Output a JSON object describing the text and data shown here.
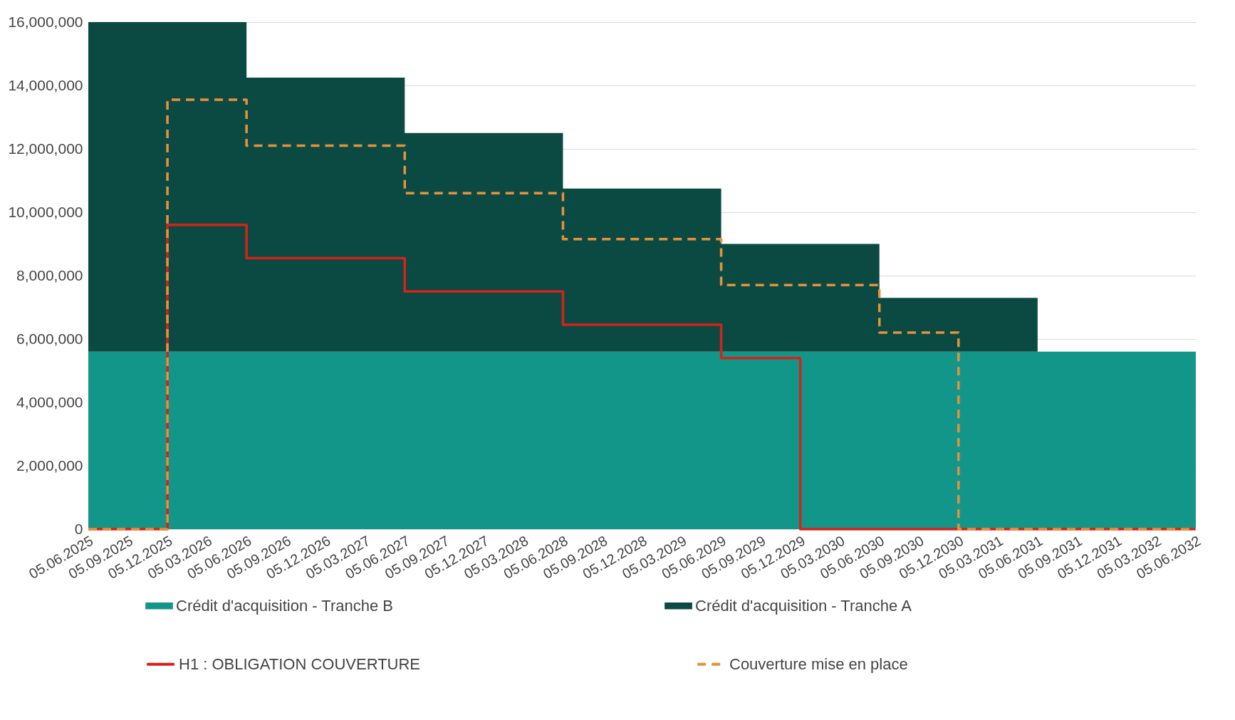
{
  "chart_data": {
    "type": "step",
    "stacked": true,
    "categories": [
      "05.06.2025",
      "05.09.2025",
      "05.12.2025",
      "05.03.2026",
      "05.06.2026",
      "05.09.2026",
      "05.12.2026",
      "05.03.2027",
      "05.06.2027",
      "05.09.2027",
      "05.12.2027",
      "05.03.2028",
      "05.06.2028",
      "05.09.2028",
      "05.12.2028",
      "05.03.2029",
      "05.06.2029",
      "05.09.2029",
      "05.12.2029",
      "05.03.2030",
      "05.06.2030",
      "05.09.2030",
      "05.12.2030",
      "05.03.2031",
      "05.06.2031",
      "05.09.2031",
      "05.12.2031",
      "05.03.2032",
      "05.06.2032"
    ],
    "series": [
      {
        "name": "Crédit d'acquisition - Tranche B",
        "type": "area",
        "color": "#12968a",
        "values": [
          5600000,
          5600000,
          5600000,
          5600000,
          5600000,
          5600000,
          5600000,
          5600000,
          5600000,
          5600000,
          5600000,
          5600000,
          5600000,
          5600000,
          5600000,
          5600000,
          5600000,
          5600000,
          5600000,
          5600000,
          5600000,
          5600000,
          5600000,
          5600000,
          5600000,
          5600000,
          5600000,
          5600000,
          5600000
        ]
      },
      {
        "name": "Crédit d'acquisition - Tranche A",
        "type": "area",
        "color": "#0b4a42",
        "values": [
          10400000,
          10400000,
          10400000,
          10400000,
          8650000,
          8650000,
          8650000,
          8650000,
          6900000,
          6900000,
          6900000,
          6900000,
          5150000,
          5150000,
          5150000,
          5150000,
          3400000,
          3400000,
          3400000,
          3400000,
          1700000,
          1700000,
          1700000,
          1700000,
          0,
          0,
          0,
          0,
          0
        ]
      },
      {
        "name": "H1 : OBLIGATION COUVERTURE",
        "type": "step",
        "color": "#d6221a",
        "line_style": "solid",
        "values": [
          0,
          0,
          9600000,
          9600000,
          8550000,
          8550000,
          8550000,
          8550000,
          7500000,
          7500000,
          7500000,
          7500000,
          6450000,
          6450000,
          6450000,
          6450000,
          5400000,
          5400000,
          0,
          0,
          0,
          0,
          0,
          0,
          0,
          0,
          0,
          0,
          0
        ]
      },
      {
        "name": "Couverture mise en place",
        "type": "step",
        "color": "#e8913a",
        "line_style": "dashed",
        "values": [
          0,
          0,
          13550000,
          13550000,
          12100000,
          12100000,
          12100000,
          12100000,
          10600000,
          10600000,
          10600000,
          10600000,
          9150000,
          9150000,
          9150000,
          9150000,
          7700000,
          7700000,
          7700000,
          7700000,
          6200000,
          6200000,
          0,
          0,
          0,
          0,
          0,
          0,
          0
        ]
      }
    ],
    "ylim": [
      0,
      16000000
    ],
    "yticks": [
      0,
      {
        "value": 2000000,
        "label": "2,000,000"
      },
      {
        "value": 4000000,
        "label": "4,000,000"
      },
      {
        "value": 6000000,
        "label": "6,000,000"
      },
      {
        "value": 8000000,
        "label": "8,000,000"
      },
      {
        "value": 10000000,
        "label": "10,000,000"
      },
      {
        "value": 12000000,
        "label": "12,000,000"
      },
      {
        "value": 14000000,
        "label": "14,000,000"
      },
      {
        "value": 16000000,
        "label": "16,000,000"
      }
    ],
    "grid": "y",
    "legend": "bottom"
  }
}
